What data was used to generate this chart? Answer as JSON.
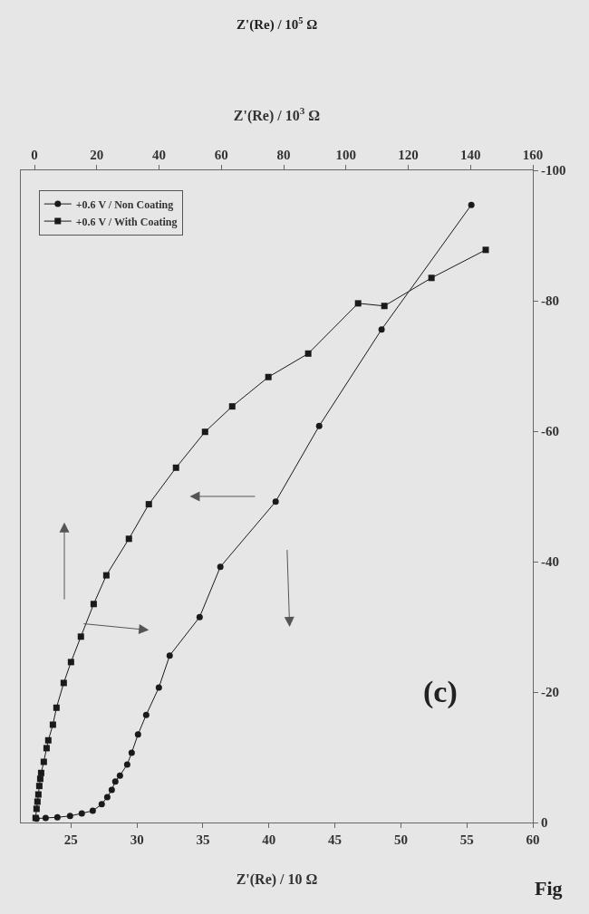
{
  "chart_data": {
    "type": "line",
    "xlabel": "Z'(Re) / 10 Ω",
    "x2label": "Z'(Re) / 10$^{3}$ Ω",
    "xlim": [
      21.2,
      60
    ],
    "xticks": [
      25,
      30,
      35,
      40,
      45,
      50,
      55,
      60
    ],
    "x2lim": [
      -4.4,
      160
    ],
    "x2ticks": [
      0,
      20,
      40,
      60,
      80,
      100,
      120,
      140,
      160
    ],
    "ylim": [
      0,
      -100
    ],
    "yticks": [
      0,
      -20,
      -40,
      -60,
      -80,
      -100
    ],
    "grid": false,
    "legend": "top left",
    "annotations": [
      "Z'(Re) / 10$^{5}$ Ω",
      "(c)",
      "Fig"
    ],
    "series": [
      {
        "name": "+0.6 V / Non Coating",
        "color": "#1a1a1a",
        "marker": "circle",
        "line_style": "solid",
        "x": [
          22.39,
          23.08,
          23.97,
          24.93,
          25.82,
          26.65,
          27.33,
          27.75,
          28.09,
          28.36,
          28.71,
          29.26,
          29.6,
          30.08,
          30.7,
          31.66,
          32.48,
          34.75,
          36.32,
          40.51,
          43.81,
          48.54,
          55.34
        ],
        "values": [
          -0.6,
          -0.7,
          -0.8,
          -1.0,
          -1.4,
          -1.8,
          -2.8,
          -3.9,
          -5.0,
          -6.3,
          -7.2,
          -8.9,
          -10.7,
          -13.5,
          -16.5,
          -20.7,
          -25.6,
          -31.5,
          -39.2,
          -49.2,
          -60.8,
          -75.6,
          -94.7
        ]
      },
      {
        "name": "+0.6 V / With Coating",
        "color": "#1a1a1a",
        "marker": "square",
        "line_style": "solid",
        "x": [
          22.32,
          22.39,
          22.46,
          22.53,
          22.6,
          22.67,
          22.74,
          22.94,
          23.15,
          23.28,
          23.63,
          23.9,
          24.45,
          25.0,
          25.75,
          26.72,
          27.68,
          29.39,
          30.9,
          32.96,
          35.16,
          37.22,
          39.96,
          42.98,
          46.76,
          48.75,
          52.32,
          56.43
        ],
        "values": [
          -0.7,
          -2.1,
          -3.2,
          -4.3,
          -5.6,
          -6.7,
          -7.6,
          -9.3,
          -11.4,
          -12.6,
          -15.0,
          -17.6,
          -21.4,
          -24.6,
          -28.5,
          -33.5,
          -37.9,
          -43.5,
          -48.8,
          -54.4,
          -59.9,
          -63.8,
          -68.3,
          -71.9,
          -79.6,
          -79.2,
          -83.5,
          -87.8
        ]
      }
    ]
  }
}
